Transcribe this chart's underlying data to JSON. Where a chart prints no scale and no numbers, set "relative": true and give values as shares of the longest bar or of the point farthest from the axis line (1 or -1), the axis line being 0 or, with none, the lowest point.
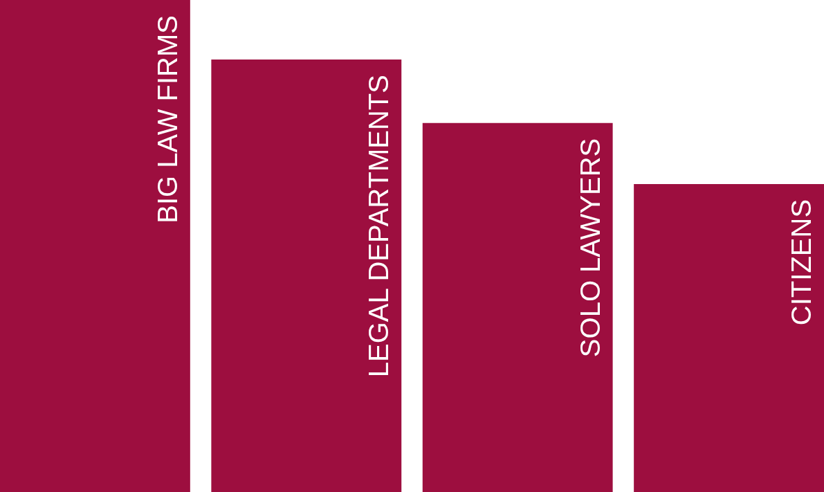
{
  "chart_data": {
    "type": "bar",
    "relative": true,
    "categories": [
      "BIG LAW FIRMS",
      "LEGAL DEPARTMENTS",
      "SOLO LAWYERS",
      "CITIZENS"
    ],
    "values": [
      1,
      0.879,
      0.75,
      0.626
    ],
    "color": "#9d0e3f"
  }
}
